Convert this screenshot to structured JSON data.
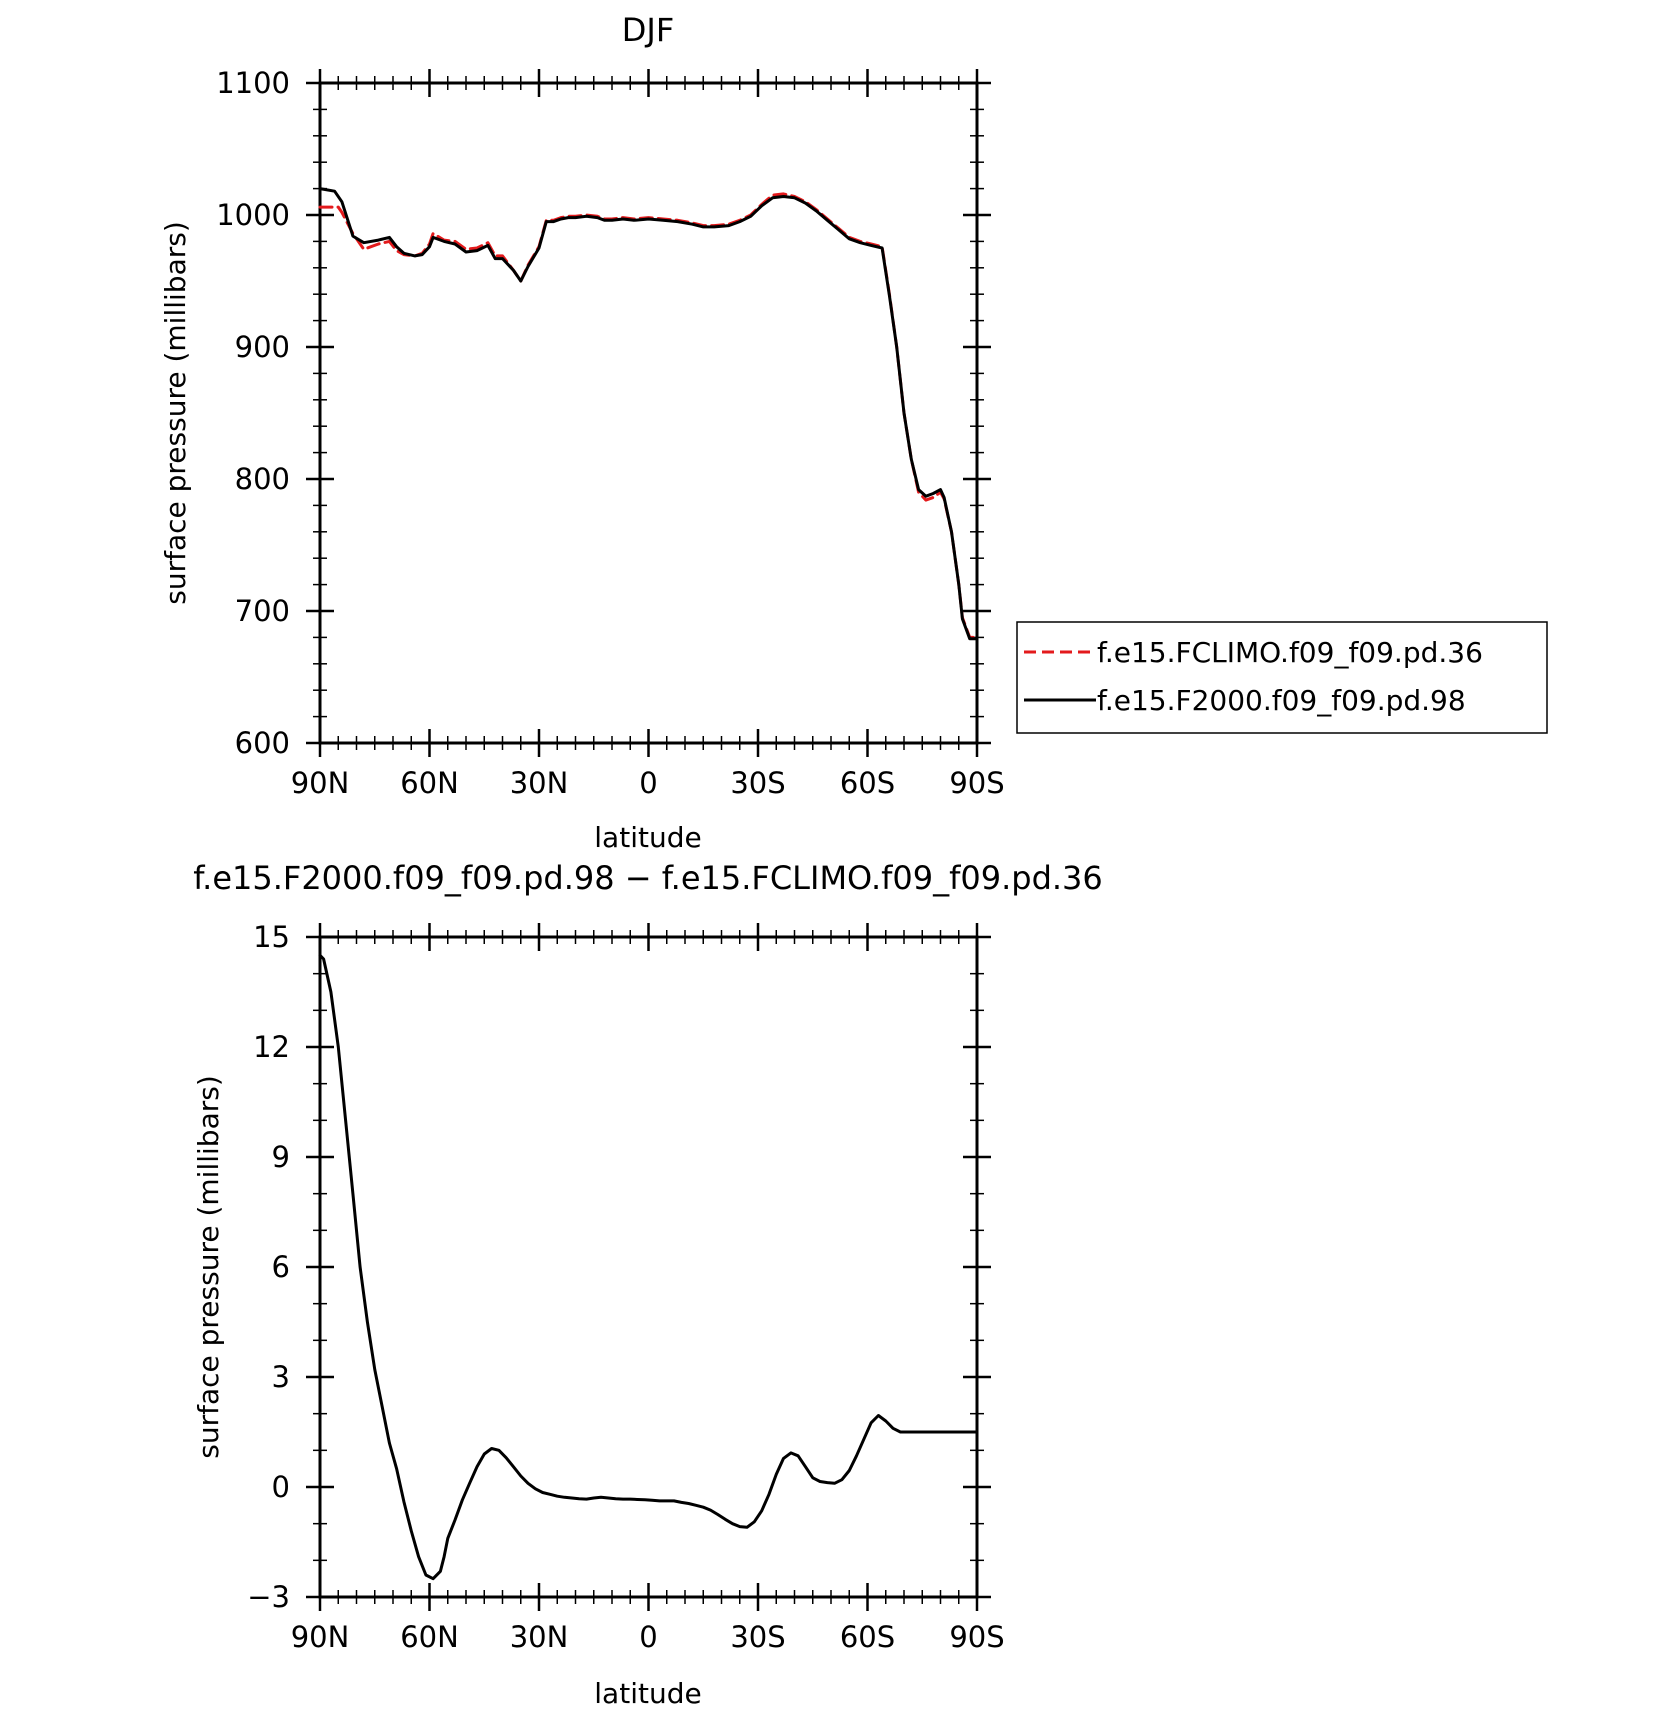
{
  "chart_data": [
    {
      "type": "line",
      "title": "DJF",
      "xlabel": "latitude",
      "ylabel": "surface pressure (millibars)",
      "x_tick_labels": [
        "90N",
        "60N",
        "30N",
        "0",
        "30S",
        "60S",
        "90S"
      ],
      "x_tick_values": [
        90,
        60,
        30,
        0,
        -30,
        -60,
        -90
      ],
      "xlim": [
        90,
        -90
      ],
      "y_tick_labels": [
        "600",
        "700",
        "800",
        "900",
        "1000",
        "1100"
      ],
      "y_tick_values": [
        600,
        700,
        800,
        900,
        1000,
        1100
      ],
      "ylim": [
        600,
        1100
      ],
      "grid": false,
      "legend_position": "right",
      "series": [
        {
          "name": "f.e15.FCLIMO.f09_f09.pd.36",
          "color": "#e31a1c",
          "dash": "dashed",
          "x": [
            90,
            85,
            84,
            81,
            78,
            74,
            71,
            69,
            67,
            64,
            62,
            60,
            59,
            56,
            53,
            50,
            47,
            44,
            42,
            40,
            37,
            35,
            33,
            30,
            28,
            26,
            24,
            22,
            20,
            17,
            14,
            12,
            10,
            7,
            4,
            0,
            -4,
            -8,
            -12,
            -15,
            -18,
            -22,
            -25,
            -28,
            -31,
            -34,
            -37,
            -40,
            -43,
            -46,
            -49,
            -52,
            -55,
            -58,
            -61,
            -64,
            -66,
            -68,
            -70,
            -72,
            -74,
            -76,
            -78,
            -80,
            -81,
            -83,
            -85,
            -86,
            -88,
            -90
          ],
          "y": [
            1006,
            1006,
            1002,
            986,
            974,
            978,
            980,
            973,
            970,
            969,
            971,
            978,
            986,
            981,
            980,
            974,
            975,
            979,
            969,
            969,
            958,
            950,
            962,
            976,
            996,
            996,
            998,
            999,
            999,
            1000,
            999,
            997,
            997,
            998,
            997,
            998,
            997,
            996,
            994,
            992,
            992,
            993,
            996,
            1000,
            1008,
            1015,
            1016,
            1014,
            1010,
            1004,
            997,
            990,
            983,
            980,
            978,
            976,
            940,
            900,
            850,
            815,
            790,
            784,
            786,
            790,
            785,
            760,
            720,
            695,
            680,
            680
          ]
        },
        {
          "name": "f.e15.F2000.f09_f09.pd.98",
          "color": "#000000",
          "dash": "solid",
          "x": [
            90,
            86,
            84,
            81,
            78,
            74,
            71,
            69,
            67,
            64,
            62,
            60,
            59,
            56,
            53,
            50,
            47,
            44,
            42,
            40,
            37,
            35,
            33,
            30,
            28,
            26,
            24,
            22,
            20,
            17,
            14,
            12,
            10,
            7,
            4,
            0,
            -4,
            -8,
            -12,
            -15,
            -18,
            -22,
            -25,
            -28,
            -31,
            -34,
            -37,
            -40,
            -43,
            -46,
            -49,
            -52,
            -55,
            -58,
            -61,
            -64,
            -66,
            -68,
            -70,
            -72,
            -74,
            -76,
            -78,
            -80,
            -81,
            -83,
            -85,
            -86,
            -88,
            -90
          ],
          "y": [
            1020,
            1018,
            1010,
            984,
            979,
            981,
            983,
            976,
            971,
            969,
            970,
            976,
            983,
            980,
            978,
            972,
            973,
            977,
            967,
            967,
            958,
            950,
            961,
            975,
            995,
            995,
            997,
            998,
            998,
            999,
            998,
            996,
            996,
            997,
            996,
            997,
            996,
            995,
            993,
            991,
            991,
            992,
            995,
            999,
            1007,
            1013,
            1014,
            1013,
            1009,
            1003,
            996,
            989,
            982,
            979,
            977,
            975,
            939,
            900,
            850,
            815,
            792,
            787,
            789,
            792,
            786,
            760,
            720,
            694,
            679,
            679
          ]
        }
      ]
    },
    {
      "type": "line",
      "title": "f.e15.F2000.f09_f09.pd.98 − f.e15.FCLIMO.f09_f09.pd.36",
      "xlabel": "latitude",
      "ylabel": "surface pressure (millibars)",
      "x_tick_labels": [
        "90N",
        "60N",
        "30N",
        "0",
        "30S",
        "60S",
        "90S"
      ],
      "x_tick_values": [
        90,
        60,
        30,
        0,
        -30,
        -60,
        -90
      ],
      "xlim": [
        90,
        -90
      ],
      "y_tick_labels": [
        "−3",
        "0",
        "3",
        "6",
        "9",
        "12",
        "15"
      ],
      "y_tick_values": [
        -3,
        0,
        3,
        6,
        9,
        12,
        15
      ],
      "ylim": [
        -3,
        15
      ],
      "grid": false,
      "series": [
        {
          "color": "#000000",
          "dash": "solid",
          "x": [
            90,
            89,
            87,
            85,
            83,
            81,
            79,
            77,
            75,
            73,
            71,
            69,
            67,
            65,
            63,
            61,
            59,
            57,
            56,
            55,
            53,
            51,
            49,
            47,
            45,
            43,
            41,
            39,
            37,
            35,
            33,
            31,
            29,
            27,
            25,
            23,
            21,
            19,
            17,
            15,
            13,
            11,
            9,
            7,
            5,
            3,
            1,
            -1,
            -3,
            -5,
            -7,
            -9,
            -11,
            -13,
            -15,
            -17,
            -19,
            -21,
            -23,
            -25,
            -27,
            -29,
            -31,
            -33,
            -35,
            -37,
            -39,
            -41,
            -43,
            -45,
            -47,
            -49,
            -51,
            -53,
            -55,
            -57,
            -59,
            -61,
            -63,
            -65,
            -67,
            -69,
            -71,
            -73,
            -75,
            -77,
            -79,
            -81,
            -83,
            -85,
            -87,
            -89,
            -90
          ],
          "y": [
            14.5,
            14.4,
            13.5,
            12,
            10,
            8,
            6,
            4.5,
            3.2,
            2.2,
            1.2,
            0.5,
            -0.4,
            -1.2,
            -1.9,
            -2.4,
            -2.5,
            -2.3,
            -1.9,
            -1.4,
            -0.9,
            -0.35,
            0.1,
            0.55,
            0.9,
            1.05,
            1.0,
            0.8,
            0.55,
            0.3,
            0.1,
            -0.05,
            -0.15,
            -0.2,
            -0.25,
            -0.28,
            -0.3,
            -0.32,
            -0.33,
            -0.3,
            -0.28,
            -0.3,
            -0.32,
            -0.33,
            -0.33,
            -0.34,
            -0.35,
            -0.36,
            -0.38,
            -0.38,
            -0.38,
            -0.42,
            -0.45,
            -0.5,
            -0.55,
            -0.63,
            -0.75,
            -0.88,
            -1.0,
            -1.08,
            -1.1,
            -0.95,
            -0.65,
            -0.2,
            0.35,
            0.78,
            0.93,
            0.85,
            0.55,
            0.25,
            0.15,
            0.12,
            0.1,
            0.2,
            0.45,
            0.85,
            1.3,
            1.75,
            1.95,
            1.8,
            1.6,
            1.5,
            1.5,
            1.5,
            1.5,
            1.5,
            1.5,
            1.5,
            1.5,
            1.5,
            1.5,
            1.5,
            1.5
          ]
        }
      ]
    }
  ]
}
